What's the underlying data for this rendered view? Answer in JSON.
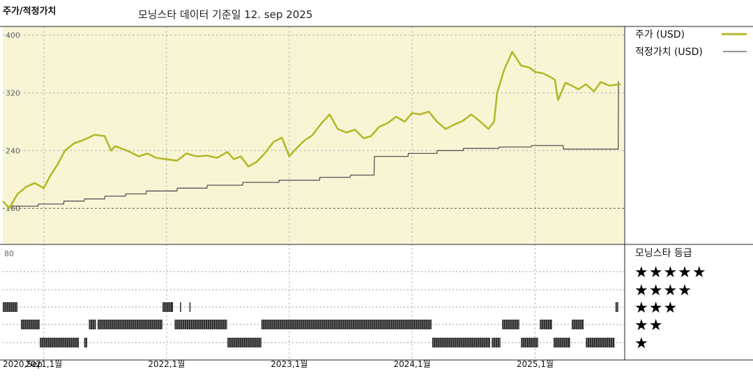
{
  "header": {
    "y_label": "주가/적정가치",
    "subtitle": "모닝스타 데이터 기준일 12. sep 2025"
  },
  "colors": {
    "price": "#b3b82a",
    "fair_value": "#555555",
    "top_panel_bg": "#f8f5d5",
    "grid": "#b8b8b8"
  },
  "rating_panel": {
    "title": "모닝스타 등급",
    "levels": [
      "★★★★★",
      "★★★★",
      "★★★",
      "★★",
      "★"
    ],
    "top_tick": "80"
  },
  "chart_data": {
    "type": "line",
    "title": "",
    "subtitle": "모닝스타 데이터 기준일 12. sep 2025",
    "ylabel": "주가/적정가치",
    "ylim": [
      110,
      412
    ],
    "yticks": [
      400,
      320,
      240,
      160
    ],
    "xlim": [
      "2020-09-01",
      "2025-09-12"
    ],
    "x_tick_labels": [
      "2020,Sep",
      "2021,1월",
      "2022,1월",
      "2023,1월",
      "2024,1월",
      "2025,1월"
    ],
    "x_tick_dates": [
      "2020-09-01",
      "2021-01-01",
      "2022-01-01",
      "2023-01-01",
      "2024-01-01",
      "2025-01-01"
    ],
    "x_gridline_dates": [
      "2021-01-01",
      "2022-01-01",
      "2023-01-01",
      "2024-01-01",
      "2025-01-01"
    ],
    "legend": "top-right",
    "grid": true,
    "series": [
      {
        "name": "주가 (USD)",
        "x": [
          "2020-09-01",
          "2020-09-20",
          "2020-10-15",
          "2020-11-10",
          "2020-12-05",
          "2021-01-01",
          "2021-01-20",
          "2021-02-10",
          "2021-03-05",
          "2021-04-01",
          "2021-05-01",
          "2021-06-01",
          "2021-07-01",
          "2021-07-20",
          "2021-08-01",
          "2021-08-25",
          "2021-09-15",
          "2021-10-10",
          "2021-11-05",
          "2021-12-01",
          "2022-01-01",
          "2022-02-01",
          "2022-03-01",
          "2022-04-01",
          "2022-05-01",
          "2022-06-01",
          "2022-07-01",
          "2022-07-20",
          "2022-08-10",
          "2022-09-01",
          "2022-09-25",
          "2022-10-20",
          "2022-11-15",
          "2022-12-10",
          "2023-01-01",
          "2023-01-20",
          "2023-02-15",
          "2023-03-10",
          "2023-04-05",
          "2023-05-01",
          "2023-05-25",
          "2023-06-20",
          "2023-07-15",
          "2023-08-10",
          "2023-09-01",
          "2023-09-25",
          "2023-10-20",
          "2023-11-15",
          "2023-12-10",
          "2024-01-01",
          "2024-01-25",
          "2024-02-20",
          "2024-03-15",
          "2024-04-10",
          "2024-05-05",
          "2024-05-30",
          "2024-06-25",
          "2024-07-20",
          "2024-08-15",
          "2024-09-01",
          "2024-09-10",
          "2024-10-01",
          "2024-10-25",
          "2024-11-20",
          "2024-12-15",
          "2025-01-01",
          "2025-01-25",
          "2025-02-15",
          "2025-03-01",
          "2025-03-10",
          "2025-04-01",
          "2025-04-20",
          "2025-05-10",
          "2025-06-01",
          "2025-06-25",
          "2025-07-15",
          "2025-08-10",
          "2025-09-12"
        ],
        "y": [
          170,
          160,
          180,
          190,
          195,
          188,
          205,
          220,
          240,
          250,
          255,
          262,
          260,
          240,
          246,
          242,
          238,
          232,
          236,
          230,
          228,
          226,
          236,
          232,
          233,
          230,
          238,
          228,
          232,
          218,
          224,
          236,
          252,
          258,
          232,
          242,
          254,
          261,
          277,
          290,
          270,
          265,
          269,
          257,
          260,
          273,
          278,
          287,
          280,
          292,
          290,
          294,
          280,
          270,
          276,
          281,
          290,
          281,
          270,
          280,
          320,
          352,
          377,
          358,
          355,
          349,
          347,
          342,
          338,
          310,
          334,
          330,
          325,
          332,
          322,
          335,
          330,
          332
        ]
      },
      {
        "name": "적정가치 (USD)",
        "x": [
          "2020-09-20",
          "2020-12-15",
          "2020-12-16",
          "2021-03-01",
          "2021-03-02",
          "2021-05-01",
          "2021-05-02",
          "2021-07-01",
          "2021-07-02",
          "2021-09-01",
          "2021-09-02",
          "2021-11-01",
          "2021-11-02",
          "2022-02-01",
          "2022-02-02",
          "2022-05-01",
          "2022-05-02",
          "2022-08-15",
          "2022-08-16",
          "2022-12-01",
          "2022-12-02",
          "2023-04-01",
          "2023-04-02",
          "2023-07-01",
          "2023-07-02",
          "2023-09-10",
          "2023-09-11",
          "2023-12-20",
          "2023-12-21",
          "2024-03-15",
          "2024-03-16",
          "2024-06-01",
          "2024-06-02",
          "2024-09-15",
          "2024-09-16",
          "2024-12-20",
          "2024-12-21",
          "2025-03-25",
          "2025-03-26",
          "2025-09-05",
          "2025-09-06"
        ],
        "y": [
          163,
          163,
          166,
          166,
          170,
          170,
          173,
          173,
          177,
          177,
          180,
          180,
          184,
          184,
          188,
          188,
          192,
          192,
          196,
          196,
          199,
          199,
          203,
          203,
          206,
          206,
          232,
          232,
          236,
          236,
          240,
          240,
          243,
          243,
          245,
          245,
          247,
          247,
          242,
          242,
          336
        ]
      }
    ],
    "rating_history": {
      "levels": [
        5,
        4,
        3,
        2,
        1
      ],
      "segments": [
        {
          "rating": 3,
          "start": "2020-09-01",
          "end": "2020-10-15"
        },
        {
          "rating": 2,
          "start": "2020-10-25",
          "end": "2020-12-20"
        },
        {
          "rating": 1,
          "start": "2020-12-20",
          "end": "2021-04-15"
        },
        {
          "rating": 1,
          "start": "2021-05-01",
          "end": "2021-05-10"
        },
        {
          "rating": 2,
          "start": "2021-05-15",
          "end": "2021-06-05"
        },
        {
          "rating": 2,
          "start": "2021-06-10",
          "end": "2021-12-20"
        },
        {
          "rating": 3,
          "start": "2021-12-20",
          "end": "2022-01-20"
        },
        {
          "rating": 2,
          "start": "2022-01-25",
          "end": "2022-06-30"
        },
        {
          "rating": 3,
          "start": "2022-02-10",
          "end": "2022-02-12"
        },
        {
          "rating": 3,
          "start": "2022-03-10",
          "end": "2022-03-12"
        },
        {
          "rating": 1,
          "start": "2022-07-01",
          "end": "2022-10-10"
        },
        {
          "rating": 2,
          "start": "2022-10-10",
          "end": "2024-02-28"
        },
        {
          "rating": 1,
          "start": "2024-03-01",
          "end": "2024-08-20"
        },
        {
          "rating": 1,
          "start": "2024-08-25",
          "end": "2024-09-20"
        },
        {
          "rating": 2,
          "start": "2024-09-25",
          "end": "2024-11-15"
        },
        {
          "rating": 1,
          "start": "2024-11-20",
          "end": "2025-01-10"
        },
        {
          "rating": 2,
          "start": "2025-01-15",
          "end": "2025-02-20"
        },
        {
          "rating": 1,
          "start": "2025-02-25",
          "end": "2025-04-15"
        },
        {
          "rating": 2,
          "start": "2025-04-20",
          "end": "2025-05-25"
        },
        {
          "rating": 1,
          "start": "2025-06-01",
          "end": "2025-08-25"
        },
        {
          "rating": 3,
          "start": "2025-08-28",
          "end": "2025-09-05"
        }
      ]
    }
  }
}
